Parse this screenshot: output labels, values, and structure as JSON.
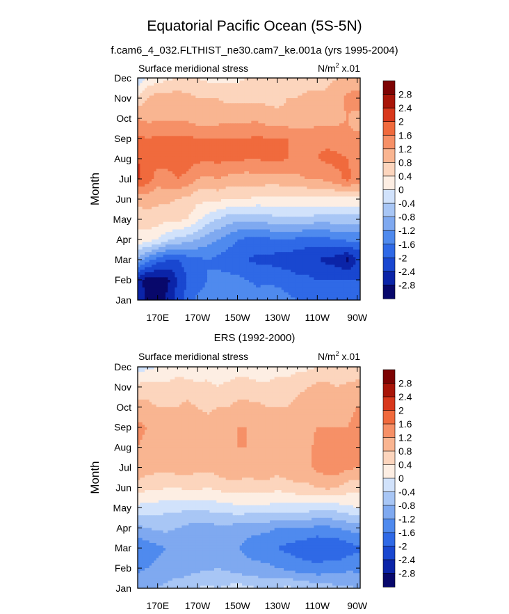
{
  "figure": {
    "title": "Equatorial Pacific Ocean (5S-5N)"
  },
  "colors": {
    "levels": [
      "#08086b",
      "#0b24a8",
      "#1947d0",
      "#2f69e6",
      "#4f8aee",
      "#7fa9f0",
      "#a8c6f5",
      "#d1e2fb",
      "#fdeee3",
      "#fcd5bd",
      "#f9b591",
      "#f69067",
      "#f06a3d",
      "#d8381c",
      "#a81508",
      "#7d0303"
    ],
    "frame": "#000000"
  },
  "colorbar": {
    "labels": [
      "2.8",
      "2.4",
      "2",
      "1.6",
      "1.2",
      "0.8",
      "0.4",
      "0",
      "-0.4",
      "-0.8",
      "-1.2",
      "-1.6",
      "-2",
      "-2.4",
      "-2.8"
    ]
  },
  "chart_data": [
    {
      "type": "heatmap",
      "title": "f.cam6_4_032.FLTHIST_ne30.cam7_ke.001a (yrs 1995-2004)",
      "left_label": "Surface meridional stress",
      "right_label": "N/m",
      "right_label_sup": "2",
      "right_label_suffix": " x.01",
      "ylabel": "Month",
      "x_ticklabels": [
        "170E",
        "170W",
        "150W",
        "130W",
        "110W",
        "90W"
      ],
      "x_tick_lons": [
        170,
        190,
        210,
        230,
        250,
        270
      ],
      "xlim": [
        160,
        271.5
      ],
      "y_ticklabels": [
        "Jan",
        "Feb",
        "Mar",
        "Apr",
        "May",
        "Jun",
        "Jul",
        "Aug",
        "Sep",
        "Oct",
        "Nov",
        "Dec"
      ],
      "lon_nodes": [
        160,
        165,
        170,
        175,
        180,
        185,
        190,
        195,
        200,
        205,
        210,
        215,
        220,
        225,
        230,
        235,
        240,
        245,
        250,
        255,
        260,
        265,
        270
      ],
      "values": [
        [
          -2.5,
          -2.9,
          -3.0,
          -2.7,
          -2.2,
          -1.8,
          -1.5,
          -1.4,
          -1.5,
          -1.3,
          -1.2,
          -1.3,
          -1.4,
          -1.3,
          -1.4,
          -1.5,
          -1.6,
          -1.6,
          -1.7,
          -1.8,
          -1.8,
          -1.8,
          -1.8
        ],
        [
          -2.6,
          -3.0,
          -3.0,
          -2.9,
          -2.4,
          -2.0,
          -1.8,
          -1.6,
          -1.5,
          -1.5,
          -1.5,
          -1.6,
          -1.7,
          -1.7,
          -1.7,
          -1.8,
          -1.9,
          -1.9,
          -2.0,
          -2.0,
          -2.0,
          -2.0,
          -2.0
        ],
        [
          -1.0,
          -1.4,
          -1.8,
          -2.0,
          -2.0,
          -1.8,
          -1.7,
          -1.6,
          -1.7,
          -1.8,
          -1.9,
          -2.0,
          -2.1,
          -2.1,
          -2.2,
          -2.2,
          -2.3,
          -2.3,
          -2.4,
          -2.5,
          -2.6,
          -2.9,
          -2.4
        ],
        [
          0.3,
          0.2,
          0.0,
          -0.3,
          -0.5,
          -0.6,
          -0.8,
          -1.0,
          -1.2,
          -1.4,
          -1.6,
          -1.7,
          -1.7,
          -1.7,
          -1.6,
          -1.6,
          -1.7,
          -1.8,
          -1.8,
          -1.7,
          -1.6,
          -1.5,
          -1.5
        ],
        [
          0.5,
          0.6,
          0.6,
          0.5,
          0.5,
          0.4,
          0.1,
          -0.2,
          -0.4,
          -0.6,
          -0.7,
          -0.7,
          -0.7,
          -0.6,
          -0.5,
          -0.5,
          -0.5,
          -0.5,
          -0.6,
          -0.6,
          -0.6,
          -0.6,
          -0.6
        ],
        [
          1.0,
          1.0,
          0.9,
          0.9,
          0.8,
          0.7,
          0.5,
          0.5,
          0.5,
          0.4,
          0.4,
          0.4,
          0.3,
          0.3,
          0.3,
          0.3,
          0.3,
          0.3,
          0.3,
          0.3,
          0.3,
          0.3,
          0.3
        ],
        [
          2.1,
          1.8,
          1.4,
          1.5,
          1.6,
          1.5,
          1.2,
          1.1,
          1.2,
          1.1,
          1.0,
          1.0,
          1.1,
          1.0,
          1.0,
          1.1,
          1.1,
          1.2,
          1.2,
          1.3,
          1.5,
          1.7,
          1.5
        ],
        [
          2.0,
          1.8,
          1.8,
          1.7,
          1.8,
          1.8,
          1.7,
          1.7,
          1.7,
          1.7,
          1.7,
          1.6,
          1.6,
          1.7,
          1.7,
          1.6,
          1.5,
          1.5,
          1.6,
          1.7,
          1.7,
          1.6,
          1.4
        ],
        [
          1.7,
          1.6,
          1.7,
          1.7,
          1.7,
          1.7,
          1.6,
          1.6,
          1.6,
          1.6,
          1.6,
          1.6,
          1.7,
          1.6,
          1.6,
          1.6,
          1.5,
          1.5,
          1.5,
          1.5,
          1.4,
          1.3,
          1.3
        ],
        [
          1.2,
          1.1,
          1.1,
          1.1,
          1.1,
          1.1,
          1.0,
          1.0,
          1.0,
          1.1,
          1.1,
          1.1,
          1.1,
          1.0,
          0.9,
          0.9,
          0.9,
          0.9,
          1.0,
          1.0,
          1.1,
          1.2,
          1.0
        ],
        [
          0.5,
          0.8,
          1.0,
          1.0,
          1.0,
          0.9,
          0.8,
          0.8,
          0.8,
          0.7,
          0.7,
          0.7,
          0.7,
          0.7,
          0.7,
          0.8,
          0.8,
          0.9,
          0.9,
          0.9,
          1.0,
          1.3,
          1.5
        ],
        [
          -0.4,
          0.1,
          0.2,
          0.3,
          0.4,
          0.5,
          0.4,
          0.3,
          0.3,
          0.3,
          0.3,
          0.4,
          0.5,
          0.6,
          0.6,
          0.6,
          0.6,
          0.6,
          0.6,
          0.7,
          0.8,
          0.8,
          0.8
        ]
      ]
    },
    {
      "type": "heatmap",
      "title": "ERS (1992-2000)",
      "left_label": "Surface meridional stress",
      "right_label": "N/m",
      "right_label_sup": "2",
      "right_label_suffix": " x.01",
      "ylabel": "Month",
      "x_ticklabels": [
        "170E",
        "170W",
        "150W",
        "130W",
        "110W",
        "90W"
      ],
      "x_tick_lons": [
        170,
        190,
        210,
        230,
        250,
        270
      ],
      "xlim": [
        160,
        271.5
      ],
      "y_ticklabels": [
        "Jan",
        "Feb",
        "Mar",
        "Apr",
        "May",
        "Jun",
        "Jul",
        "Aug",
        "Sep",
        "Oct",
        "Nov",
        "Dec"
      ],
      "lon_nodes": [
        160,
        165,
        170,
        175,
        180,
        185,
        190,
        195,
        200,
        205,
        210,
        215,
        220,
        225,
        230,
        235,
        240,
        245,
        250,
        255,
        260,
        265,
        270
      ],
      "values": [
        [
          -0.9,
          -0.9,
          -0.8,
          -0.7,
          -0.6,
          -0.5,
          -0.4,
          -0.3,
          -0.4,
          -0.3,
          -0.2,
          -0.3,
          -0.4,
          -0.5,
          -0.4,
          -0.3,
          -0.4,
          -0.5,
          -0.6,
          -0.6,
          -0.7,
          -0.7,
          -0.8
        ],
        [
          -1.3,
          -1.2,
          -1.1,
          -1.0,
          -1.0,
          -1.0,
          -0.9,
          -0.9,
          -0.8,
          -0.9,
          -1.0,
          -1.1,
          -1.1,
          -1.1,
          -1.2,
          -1.3,
          -1.4,
          -1.4,
          -1.5,
          -1.4,
          -1.4,
          -1.3,
          -1.3
        ],
        [
          -1.5,
          -1.4,
          -1.3,
          -1.2,
          -1.2,
          -1.1,
          -1.1,
          -1.0,
          -1.0,
          -1.1,
          -1.2,
          -1.3,
          -1.4,
          -1.5,
          -1.6,
          -1.7,
          -1.8,
          -1.9,
          -2.0,
          -1.9,
          -2.0,
          -1.8,
          -1.7
        ],
        [
          -0.9,
          -0.8,
          -0.7,
          -0.7,
          -0.8,
          -0.9,
          -1.0,
          -1.0,
          -0.9,
          -0.9,
          -1.0,
          -1.1,
          -1.1,
          -1.1,
          -1.2,
          -1.2,
          -1.2,
          -1.2,
          -1.3,
          -1.3,
          -1.2,
          -1.1,
          -1.0
        ],
        [
          -0.1,
          -0.2,
          -0.2,
          -0.3,
          -0.3,
          -0.3,
          -0.3,
          -0.3,
          -0.2,
          -0.2,
          -0.1,
          -0.1,
          -0.1,
          -0.1,
          -0.2,
          -0.2,
          -0.2,
          -0.2,
          -0.3,
          -0.3,
          -0.2,
          -0.1,
          0.0
        ],
        [
          0.6,
          0.5,
          0.5,
          0.4,
          0.4,
          0.5,
          0.5,
          0.4,
          0.5,
          0.6,
          0.6,
          0.6,
          0.6,
          0.6,
          0.5,
          0.6,
          0.7,
          0.7,
          0.8,
          0.9,
          0.8,
          0.6,
          0.5
        ],
        [
          1.1,
          1.0,
          0.9,
          0.9,
          1.0,
          1.0,
          0.9,
          0.9,
          1.0,
          1.1,
          1.1,
          1.0,
          1.1,
          1.1,
          1.0,
          1.1,
          1.1,
          1.1,
          1.3,
          1.4,
          1.4,
          1.3,
          1.2
        ],
        [
          1.2,
          1.1,
          1.0,
          1.0,
          1.1,
          1.1,
          1.1,
          1.0,
          1.1,
          1.2,
          1.2,
          1.2,
          1.2,
          1.1,
          1.1,
          1.2,
          1.2,
          1.1,
          1.3,
          1.4,
          1.4,
          1.4,
          1.3
        ],
        [
          1.3,
          1.2,
          1.1,
          1.0,
          1.1,
          1.1,
          1.0,
          1.0,
          1.0,
          1.1,
          1.2,
          1.2,
          1.1,
          1.1,
          1.1,
          1.1,
          1.2,
          1.1,
          1.2,
          1.2,
          1.2,
          1.2,
          1.3
        ],
        [
          1.0,
          0.9,
          0.8,
          0.8,
          0.8,
          0.9,
          0.8,
          0.7,
          0.8,
          0.8,
          0.9,
          0.9,
          0.9,
          0.8,
          0.8,
          0.8,
          0.9,
          1.0,
          1.1,
          1.1,
          1.0,
          1.1,
          1.2
        ],
        [
          0.5,
          0.6,
          0.5,
          0.5,
          0.6,
          0.6,
          0.5,
          0.5,
          0.4,
          0.5,
          0.6,
          0.6,
          0.5,
          0.5,
          0.6,
          0.6,
          0.7,
          0.8,
          0.9,
          0.9,
          0.8,
          0.9,
          1.0
        ],
        [
          -0.2,
          -0.1,
          0.0,
          0.1,
          0.2,
          0.1,
          0.1,
          0.2,
          0.1,
          0.1,
          0.2,
          0.2,
          0.1,
          0.1,
          0.2,
          0.2,
          0.3,
          0.3,
          0.4,
          0.5,
          0.4,
          0.4,
          0.4
        ]
      ]
    }
  ]
}
